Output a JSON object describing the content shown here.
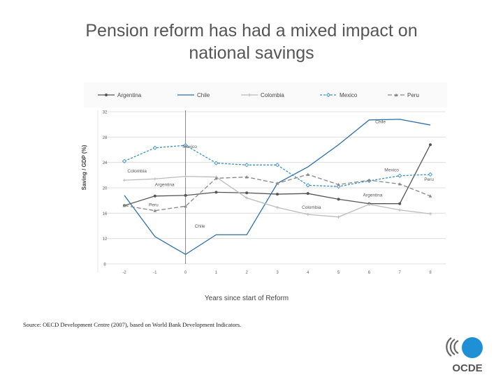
{
  "slide": {
    "title_line1": "Pension reform has had a mixed impact on",
    "title_line2": "national savings",
    "source": "Source: OECD Development Centre (2007), based on World Bank Development Indicators.",
    "logo_text": "OCDE",
    "colors": {
      "title": "#555555",
      "logo": "#1f8fd6"
    }
  },
  "chart_data": {
    "type": "line",
    "title": "",
    "xlabel": "Years since start of Reform",
    "ylabel": "Saving / GDP (%)",
    "x": [
      -2,
      -1,
      0,
      1,
      2,
      3,
      4,
      5,
      6,
      7,
      8
    ],
    "x_tick_labels": [
      "-2",
      "-1",
      "0",
      "1",
      "2",
      "3",
      "4",
      "5",
      "6",
      "7",
      "8"
    ],
    "ylim": [
      8,
      32
    ],
    "y_ticks": [
      8,
      12,
      16,
      20,
      24,
      28,
      32
    ],
    "y_tick_labels": [
      "8",
      "12",
      "16",
      "20",
      "24",
      "28",
      "32"
    ],
    "grid": true,
    "reform_line_x": 0,
    "legend_position": "top",
    "series": [
      {
        "name": "Argentina",
        "color": "#555555",
        "dash": "",
        "marker": "circle",
        "values": [
          17.2,
          18.7,
          18.8,
          19.3,
          19.2,
          19.0,
          19.1,
          18.2,
          17.5,
          17.5,
          26.8
        ]
      },
      {
        "name": "Chile",
        "color": "#2e6fa8",
        "dash": "",
        "marker": "none",
        "values": [
          18.8,
          12.3,
          9.5,
          12.6,
          12.6,
          20.7,
          23.3,
          26.8,
          30.7,
          30.8,
          29.9
        ]
      },
      {
        "name": "Colombia",
        "color": "#bbbbbb",
        "dash": "",
        "marker": "plus",
        "values": [
          21.2,
          21.4,
          21.8,
          21.7,
          18.4,
          16.9,
          15.8,
          15.4,
          17.4,
          16.5,
          15.9
        ]
      },
      {
        "name": "Mexico",
        "color": "#3a8fc8",
        "dash": "3,2",
        "marker": "diamond",
        "values": [
          24.2,
          26.3,
          26.7,
          23.9,
          23.6,
          23.6,
          20.4,
          20.2,
          21.1,
          21.9,
          22.1
        ]
      },
      {
        "name": "Peru",
        "color": "#888888",
        "dash": "6,3",
        "marker": "triangle",
        "values": [
          17.2,
          16.4,
          17.1,
          21.5,
          21.7,
          20.7,
          22.1,
          20.5,
          21.2,
          20.6,
          18.7
        ]
      }
    ],
    "annotations": [
      {
        "text": "Chile",
        "x": 6.2,
        "y": 30.2
      },
      {
        "text": "Mexico",
        "x": -0.1,
        "y": 26.3
      },
      {
        "text": "Colombia",
        "x": -1.9,
        "y": 22.4
      },
      {
        "text": "Argentina",
        "x": -1.0,
        "y": 20.3
      },
      {
        "text": "Peru",
        "x": -1.2,
        "y": 17.1
      },
      {
        "text": "Chile",
        "x": 0.3,
        "y": 13.7
      },
      {
        "text": "Colombia",
        "x": 3.8,
        "y": 16.7
      },
      {
        "text": "Mexico",
        "x": 6.5,
        "y": 22.6
      },
      {
        "text": "Peru",
        "x": 7.8,
        "y": 21.1
      },
      {
        "text": "Argentina",
        "x": 5.8,
        "y": 18.6
      }
    ]
  }
}
